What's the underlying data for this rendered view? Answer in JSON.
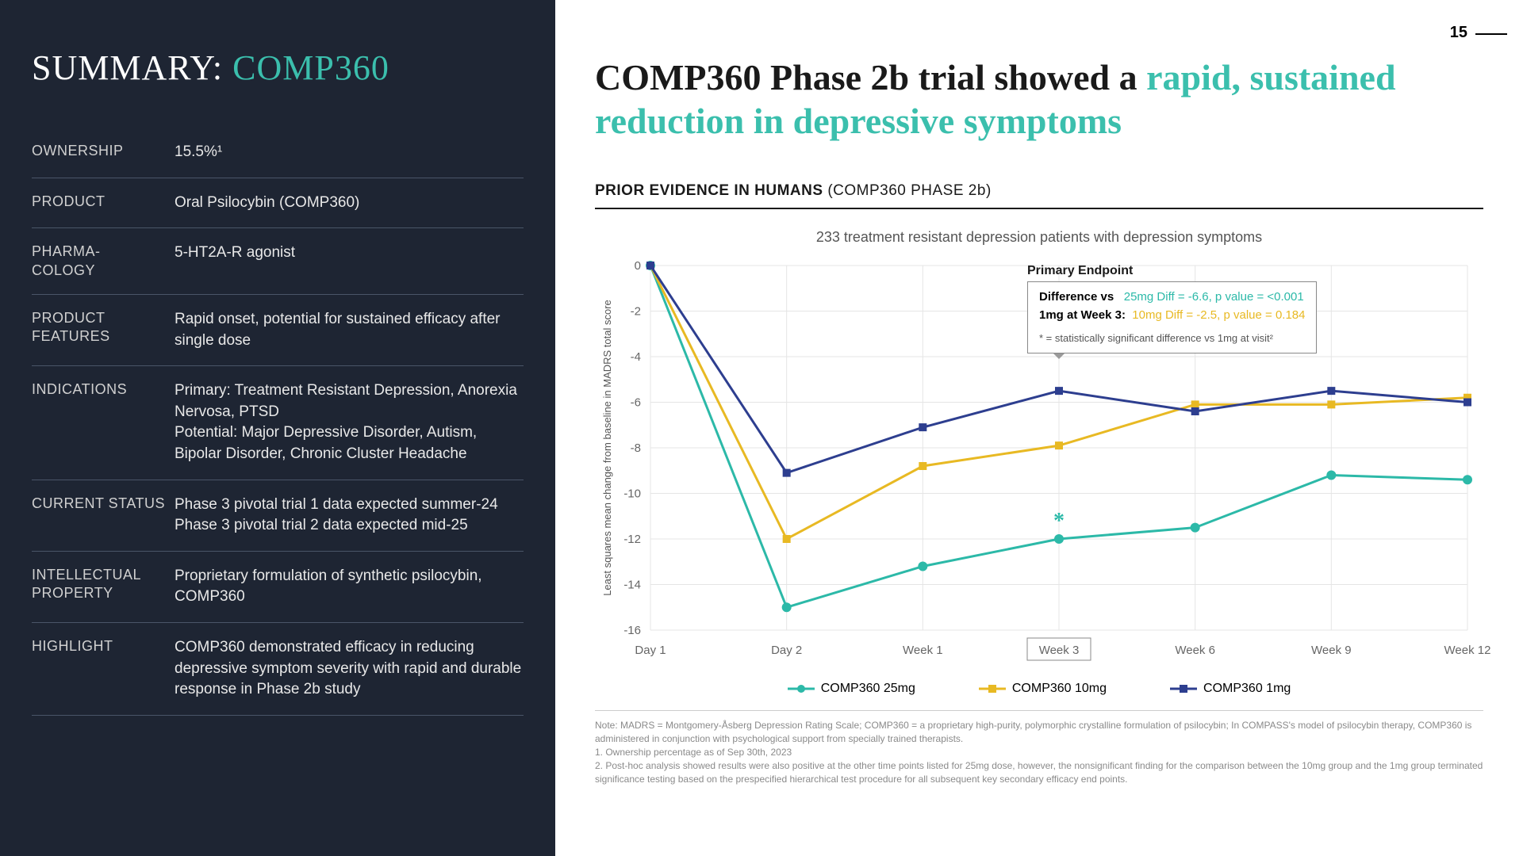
{
  "page_number": "15",
  "left": {
    "title_prefix": "SUMMARY: ",
    "title_product": "COMP360",
    "rows": [
      {
        "label": "OWNERSHIP",
        "value": "15.5%¹"
      },
      {
        "label": "PRODUCT",
        "value": "Oral Psilocybin (COMP360)"
      },
      {
        "label": "PHARMA-\nCOLOGY",
        "value": "5-HT2A-R agonist"
      },
      {
        "label": "PRODUCT FEATURES",
        "value": "Rapid onset, potential for sustained efficacy after single dose"
      },
      {
        "label": "INDICATIONS",
        "value": "Primary: Treatment Resistant Depression, Anorexia Nervosa, PTSD\nPotential: Major Depressive Disorder, Autism, Bipolar Disorder, Chronic Cluster Headache"
      },
      {
        "label": "CURRENT STATUS",
        "value": "Phase 3 pivotal trial 1 data expected summer-24\nPhase 3 pivotal trial 2 data expected mid-25"
      },
      {
        "label": "INTELLECTUAL PROPERTY",
        "value": "Proprietary formulation of synthetic psilocybin, COMP360"
      },
      {
        "label": "HIGHLIGHT",
        "value": "COMP360 demonstrated efficacy in reducing depressive symptom severity with rapid and durable response in Phase 2b study"
      }
    ]
  },
  "right": {
    "headline_dark1": "COMP360 Phase 2b trial showed a ",
    "headline_teal": "rapid, sustained reduction in depressive symptoms",
    "section_bold": "PRIOR EVIDENCE IN HUMANS ",
    "section_normal": "(COMP360 PHASE 2b)",
    "chart_title": "233 treatment resistant depression patients with depression symptoms"
  },
  "chart": {
    "type": "line",
    "x_categories": [
      "Day 1",
      "Day 2",
      "Week 1",
      "Week 3",
      "Week 6",
      "Week 9",
      "Week 12"
    ],
    "ylim": [
      -16,
      0
    ],
    "ytick_step": 2,
    "y_axis_label": "Least squares mean change from baseline in MADRS total score",
    "highlight_x_index": 3,
    "grid_color": "#e5e5e5",
    "background": "#ffffff",
    "series": [
      {
        "name": "COMP360 25mg",
        "color": "#2cb9a8",
        "marker": "circle",
        "values": [
          0,
          -15.0,
          -13.2,
          -12.0,
          -11.5,
          -9.2,
          -9.4
        ],
        "star_index": 3
      },
      {
        "name": "COMP360 10mg",
        "color": "#e8b923",
        "marker": "square",
        "values": [
          0,
          -12.0,
          -8.8,
          -7.9,
          -6.1,
          -6.1,
          -5.8
        ]
      },
      {
        "name": "COMP360 1mg",
        "color": "#2d3e8f",
        "marker": "square",
        "values": [
          0,
          -9.1,
          -7.1,
          -5.5,
          -6.4,
          -5.5,
          -6.0
        ]
      }
    ],
    "endpoint": {
      "title": "Primary Endpoint",
      "line1_label": "Difference vs",
      "line1_teal": "25mg Diff = -6.6, p value = <0.001",
      "line2_label": "1mg at Week 3:",
      "line2_yellow": "10mg Diff = -2.5, p value = 0.184",
      "footnote": "* = statistically significant difference vs 1mg at visit²"
    },
    "legend": [
      {
        "label": "COMP360 25mg",
        "color": "#2cb9a8",
        "marker": "circle"
      },
      {
        "label": "COMP360 10mg",
        "color": "#e8b923",
        "marker": "square"
      },
      {
        "label": "COMP360 1mg",
        "color": "#2d3e8f",
        "marker": "square"
      }
    ]
  },
  "footnotes": {
    "note": "Note:  MADRS = Montgomery-Åsberg Depression Rating Scale; COMP360 =  a proprietary high-purity, polymorphic crystalline formulation of psilocybin; In COMPASS's model of psilocybin therapy, COMP360 is administered in conjunction with psychological support from specially trained therapists.",
    "n1": "1.    Ownership percentage as of Sep 30th, 2023",
    "n2": "2.   Post-hoc analysis  showed results were also positive at the other time points listed for 25mg dose, however, the nonsignificant finding for the comparison between the 10mg group and the 1mg group terminated significance testing based on the prespecified hierarchical test procedure for all subsequent key secondary efficacy end points."
  }
}
